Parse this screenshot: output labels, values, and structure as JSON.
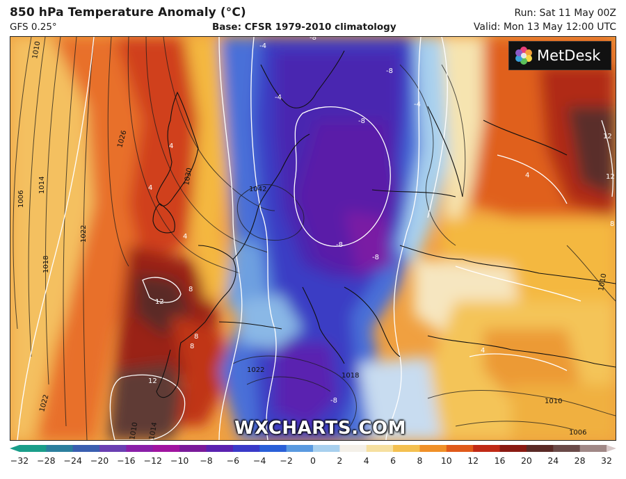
{
  "header": {
    "title": "850 hPa Temperature Anomaly (°C)",
    "model": "GFS 0.25°",
    "base": "Base: CFSR 1979-2010 climatology",
    "run": "Run: Sat 11 May 00Z",
    "valid": "Valid: Mon 13 May 12:00 UTC"
  },
  "logo": {
    "text": "MetDesk"
  },
  "watermark": "WXCHARTS.COM",
  "isobar_labels": [
    "1010",
    "1006",
    "1014",
    "1018",
    "1022",
    "1026",
    "1030",
    "1042",
    "1022",
    "1010",
    "1014",
    "1010",
    "1006",
    "1018",
    "1022",
    "1010"
  ],
  "anomaly_labels": [
    "-4",
    "-8",
    "-8",
    "-4",
    "-4",
    "4",
    "-8",
    "4",
    "4",
    "8",
    "12",
    "8",
    "8",
    "12",
    "-8",
    "-8",
    "-8",
    "4",
    "12",
    "12",
    "8",
    "4"
  ],
  "colorbar": {
    "ticks": [
      "−32",
      "−28",
      "−24",
      "−20",
      "−16",
      "−12",
      "−10",
      "−8",
      "−6",
      "−4",
      "−2",
      "0",
      "2",
      "4",
      "6",
      "8",
      "10",
      "12",
      "16",
      "20",
      "24",
      "28",
      "32"
    ],
    "colors": [
      "#1a9e8a",
      "#2c7f9e",
      "#3a5fb0",
      "#6a3fb2",
      "#8a1fa8",
      "#a014a0",
      "#7a1a9a",
      "#5a22b0",
      "#3a3ac8",
      "#2a60d8",
      "#5a9ae0",
      "#a8d0ee",
      "#f4f0e8",
      "#f6e0a0",
      "#f4c050",
      "#f09028",
      "#e05a1a",
      "#c02a16",
      "#8a1a12",
      "#5a2a26",
      "#6a4a48",
      "#a08886",
      "#d8c8c8"
    ]
  }
}
